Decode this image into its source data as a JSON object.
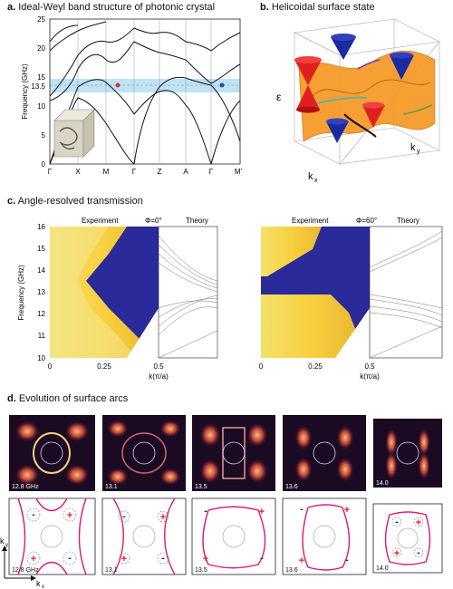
{
  "panels": {
    "a": {
      "letter": "a.",
      "title": "Ideal-Weyl band structure of photonic crystal"
    },
    "b": {
      "letter": "b.",
      "title": "Helicoidal surface state"
    },
    "c": {
      "letter": "c.",
      "title": "Angle-resolved transmission"
    },
    "d": {
      "letter": "d.",
      "title": "Evolution of surface arcs"
    }
  },
  "band_plot": {
    "ylabel": "Frequency (GHz)",
    "y_ticks": [
      "25",
      "20",
      "15",
      "13.5",
      "10",
      "5",
      "0"
    ],
    "x_ticks": [
      "Γ",
      "X",
      "M",
      "Γ",
      "Z",
      "A",
      "Γ",
      "M'"
    ],
    "highlight_color": "#bfe3f4",
    "weyl_red": "#e03030",
    "weyl_blue": "#1f4fa0"
  },
  "surface_plot": {
    "z_axis": "ε",
    "x_axis": "k",
    "x_sub": "x",
    "y_axis": "k",
    "y_sub": "y",
    "cone_red": "#e02020",
    "cone_blue": "#1a2aa0",
    "sheet_color": "#f59a2a"
  },
  "transmission": {
    "ylabel": "Frequency (GHz)",
    "y_ticks": [
      "16",
      "15",
      "14",
      "13",
      "12",
      "11",
      "10"
    ],
    "xlabel": "k(π/a)",
    "left": {
      "experiment": "Experiment",
      "angle": "Φ=0°",
      "theory": "Theory",
      "x_ticks": [
        "0",
        "0.25",
        "0.5"
      ]
    },
    "right": {
      "experiment": "Experiment",
      "angle": "Φ=60°",
      "theory": "Theory",
      "x_ticks": [
        "0",
        "0.25",
        "0.5"
      ]
    }
  },
  "arcs": {
    "frequencies": [
      "12.8 GHz",
      "13.1",
      "13.5",
      "13.6",
      "14.0"
    ],
    "ky_label": "k",
    "ky_sub": "y",
    "kx_label": "k",
    "kx_sub": "x",
    "plus": "+",
    "minus": "-",
    "arc_color": "#d81b70"
  }
}
